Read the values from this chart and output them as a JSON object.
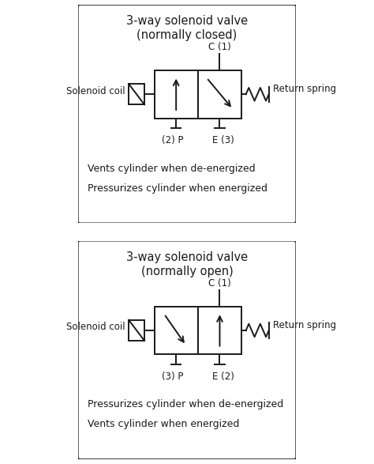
{
  "bg_color": "#ffffff",
  "box_bg": "#ffffff",
  "line_color": "#1a1a1a",
  "diagram1": {
    "title_line1": "3-way solenoid valve",
    "title_line2": "(normally closed)",
    "label_C": "C (1)",
    "label_P": "(2) P",
    "label_E": "E (3)",
    "label_solenoid": "Solenoid coil",
    "label_spring": "Return spring",
    "desc1": "Vents cylinder when de-energized",
    "desc2": "Pressurizes cylinder when energized",
    "variant": "normally_closed"
  },
  "diagram2": {
    "title_line1": "3-way solenoid valve",
    "title_line2": "(normally open)",
    "label_C": "C (1)",
    "label_P": "(3) P",
    "label_E": "E (2)",
    "label_solenoid": "Solenoid coil",
    "label_spring": "Return spring",
    "desc1": "Pressurizes cylinder when de-energized",
    "desc2": "Vents cylinder when energized",
    "variant": "normally_open"
  }
}
